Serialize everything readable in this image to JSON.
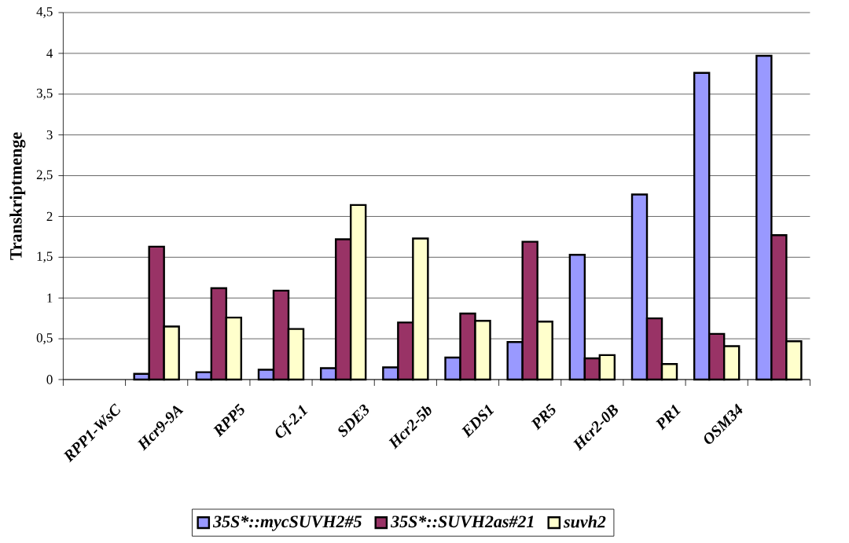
{
  "chart_data": {
    "type": "bar",
    "ylabel": "Transkriptmenge",
    "categories": [
      "RPP1-WsC",
      "Hcr9-9A",
      "RPP5",
      "Cf-2.1",
      "SDE3",
      "Hcr2-5b",
      "EDS1",
      "PR5",
      "Hcr2-0B",
      "PR1",
      "OSM34",
      null
    ],
    "series": [
      {
        "name": "35S*::mycSUVH2#5",
        "color": "#9999ff",
        "values": [
          null,
          0.07,
          0.09,
          0.12,
          0.14,
          0.15,
          0.27,
          0.46,
          1.53,
          2.27,
          3.76,
          3.97
        ]
      },
      {
        "name": "35S*::SUVH2as#21",
        "color": "#993366",
        "values": [
          null,
          1.63,
          1.12,
          1.09,
          1.72,
          0.7,
          0.81,
          1.69,
          0.26,
          0.75,
          0.56,
          1.77
        ]
      },
      {
        "name": "suvh2",
        "color": "#ffffcc",
        "values": [
          null,
          0.65,
          0.76,
          0.62,
          2.14,
          1.73,
          0.72,
          0.71,
          0.3,
          0.19,
          0.41,
          0.47
        ]
      }
    ],
    "ylim": [
      0,
      4.5
    ],
    "yticks": [
      0,
      {
        "value": 0.5,
        "label": "0,5"
      },
      1,
      {
        "value": 1.5,
        "label": "1,5"
      },
      2,
      {
        "value": 2.5,
        "label": "2,5"
      },
      3,
      {
        "value": 3.5,
        "label": "3,5"
      },
      4,
      {
        "value": 4.5,
        "label": "4,5"
      }
    ],
    "grid": "y",
    "legend": "bottom"
  }
}
